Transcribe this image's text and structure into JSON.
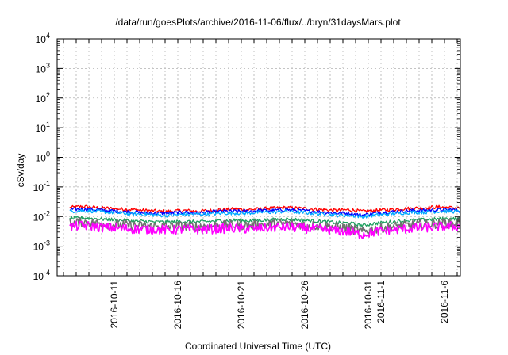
{
  "chart_data": {
    "type": "line",
    "title": "/data/run/goesPlots/archive/2016-11-06/flux/../bryn/31daysMars.plot",
    "xlabel": "Coordinated Universal Time (UTC)",
    "ylabel": "cSv/day",
    "y_scale": "log",
    "ylim": [
      0.0001,
      10000
    ],
    "y_ticks": [
      {
        "base": "10",
        "exp": "-4",
        "value": 0.0001
      },
      {
        "base": "10",
        "exp": "-3",
        "value": 0.001
      },
      {
        "base": "10",
        "exp": "-2",
        "value": 0.01
      },
      {
        "base": "10",
        "exp": "-1",
        "value": 0.1
      },
      {
        "base": "10",
        "exp": "0",
        "value": 1
      },
      {
        "base": "10",
        "exp": "1",
        "value": 10
      },
      {
        "base": "10",
        "exp": "2",
        "value": 100
      },
      {
        "base": "10",
        "exp": "3",
        "value": 1000
      },
      {
        "base": "10",
        "exp": "4",
        "value": 10000
      }
    ],
    "xlim": [
      "2016-10-06T12:00",
      "2016-11-07T06:00"
    ],
    "x_ticks": [
      "2016-10-11",
      "2016-10-16",
      "2016-10-21",
      "2016-10-26",
      "2016-10-31",
      "2016-11-1",
      "2016-11-6"
    ],
    "x_tick_dates": [
      "2016-10-11",
      "2016-10-16",
      "2016-10-21",
      "2016-10-26",
      "2016-10-31",
      "2016-11-01",
      "2016-11-06"
    ],
    "grid": true,
    "legend": "none",
    "x": [
      "2016-10-07",
      "2016-10-08",
      "2016-10-09",
      "2016-10-10",
      "2016-10-11",
      "2016-10-12",
      "2016-10-13",
      "2016-10-14",
      "2016-10-15",
      "2016-10-16",
      "2016-10-17",
      "2016-10-18",
      "2016-10-19",
      "2016-10-20",
      "2016-10-21",
      "2016-10-22",
      "2016-10-23",
      "2016-10-24",
      "2016-10-25",
      "2016-10-26",
      "2016-10-27",
      "2016-10-28",
      "2016-10-29",
      "2016-10-30",
      "2016-10-31",
      "2016-11-01",
      "2016-11-02",
      "2016-11-03",
      "2016-11-04",
      "2016-11-05",
      "2016-11-06",
      "2016-11-07"
    ],
    "series": [
      {
        "color": "#ff0000",
        "values": [
          0.02,
          0.022,
          0.02,
          0.019,
          0.018,
          0.017,
          0.016,
          0.015,
          0.015,
          0.016,
          0.015,
          0.016,
          0.017,
          0.018,
          0.017,
          0.018,
          0.019,
          0.02,
          0.019,
          0.018,
          0.017,
          0.016,
          0.017,
          0.015,
          0.016,
          0.017,
          0.018,
          0.019,
          0.02,
          0.021,
          0.02,
          0.019
        ]
      },
      {
        "color": "#0000ff",
        "values": [
          0.017,
          0.018,
          0.017,
          0.016,
          0.015,
          0.014,
          0.013,
          0.013,
          0.013,
          0.014,
          0.013,
          0.014,
          0.015,
          0.015,
          0.015,
          0.016,
          0.016,
          0.017,
          0.016,
          0.015,
          0.014,
          0.013,
          0.013,
          0.011,
          0.013,
          0.014,
          0.015,
          0.016,
          0.016,
          0.017,
          0.017,
          0.016
        ]
      },
      {
        "color": "#00aaff",
        "values": [
          0.015,
          0.016,
          0.015,
          0.014,
          0.013,
          0.012,
          0.012,
          0.011,
          0.011,
          0.012,
          0.012,
          0.012,
          0.013,
          0.013,
          0.013,
          0.014,
          0.014,
          0.015,
          0.014,
          0.013,
          0.012,
          0.011,
          0.011,
          0.01,
          0.011,
          0.012,
          0.013,
          0.014,
          0.014,
          0.015,
          0.015,
          0.014
        ]
      },
      {
        "color": "#20a060",
        "values": [
          0.0085,
          0.009,
          0.0085,
          0.008,
          0.0075,
          0.007,
          0.0068,
          0.0065,
          0.0065,
          0.0068,
          0.0066,
          0.0068,
          0.0072,
          0.0075,
          0.0072,
          0.0075,
          0.0078,
          0.0082,
          0.0078,
          0.0072,
          0.0068,
          0.0062,
          0.006,
          0.005,
          0.0058,
          0.0064,
          0.007,
          0.0075,
          0.0078,
          0.0082,
          0.0085,
          0.008
        ]
      },
      {
        "color": "#707070",
        "values": [
          0.006,
          0.0065,
          0.006,
          0.0055,
          0.0052,
          0.005,
          0.0048,
          0.0046,
          0.0046,
          0.0048,
          0.0047,
          0.0048,
          0.005,
          0.0052,
          0.005,
          0.0052,
          0.0055,
          0.0058,
          0.0055,
          0.005,
          0.0048,
          0.0044,
          0.004,
          0.003,
          0.0038,
          0.0044,
          0.0048,
          0.0052,
          0.0055,
          0.0058,
          0.006,
          0.0056
        ]
      },
      {
        "color": "#ff00ff",
        "values": [
          0.0045,
          0.005,
          0.0045,
          0.0042,
          0.004,
          0.0038,
          0.0037,
          0.0036,
          0.0035,
          0.0037,
          0.0036,
          0.0037,
          0.0039,
          0.004,
          0.0038,
          0.004,
          0.0042,
          0.0045,
          0.0042,
          0.0038,
          0.0036,
          0.0033,
          0.003,
          0.0025,
          0.003,
          0.0034,
          0.0037,
          0.004,
          0.0042,
          0.0045,
          0.0047,
          0.0044
        ]
      }
    ]
  }
}
